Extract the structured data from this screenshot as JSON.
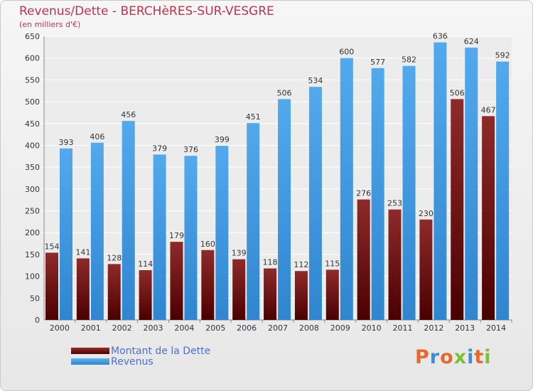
{
  "title": "Revenus/Dette - BERCHèRES-SUR-VESGRE",
  "subtitle": "(en milliers d'€)",
  "legend": {
    "dette": "Montant de la Dette",
    "revenus": "Revenus"
  },
  "logo_text": "Proxiti",
  "colors": {
    "dette": "#6b1212",
    "revenus": "#4aa3e8",
    "title": "#c0334f",
    "legend_text": "#4e6fd1"
  },
  "chart_data": {
    "type": "bar",
    "categories": [
      "2000",
      "2001",
      "2002",
      "2003",
      "2004",
      "2005",
      "2006",
      "2007",
      "2008",
      "2009",
      "2010",
      "2011",
      "2012",
      "2013",
      "2014"
    ],
    "series": [
      {
        "name": "Montant de la Dette",
        "values": [
          154,
          141,
          128,
          114,
          179,
          160,
          139,
          118,
          112,
          115,
          276,
          253,
          230,
          506,
          467
        ]
      },
      {
        "name": "Revenus",
        "values": [
          393,
          406,
          456,
          379,
          376,
          399,
          451,
          506,
          534,
          600,
          577,
          582,
          636,
          624,
          592
        ]
      }
    ],
    "yticks": [
      0,
      50,
      100,
      150,
      200,
      250,
      300,
      350,
      400,
      450,
      500,
      550,
      600,
      650
    ],
    "ylim": [
      0,
      650
    ],
    "grid": true
  }
}
